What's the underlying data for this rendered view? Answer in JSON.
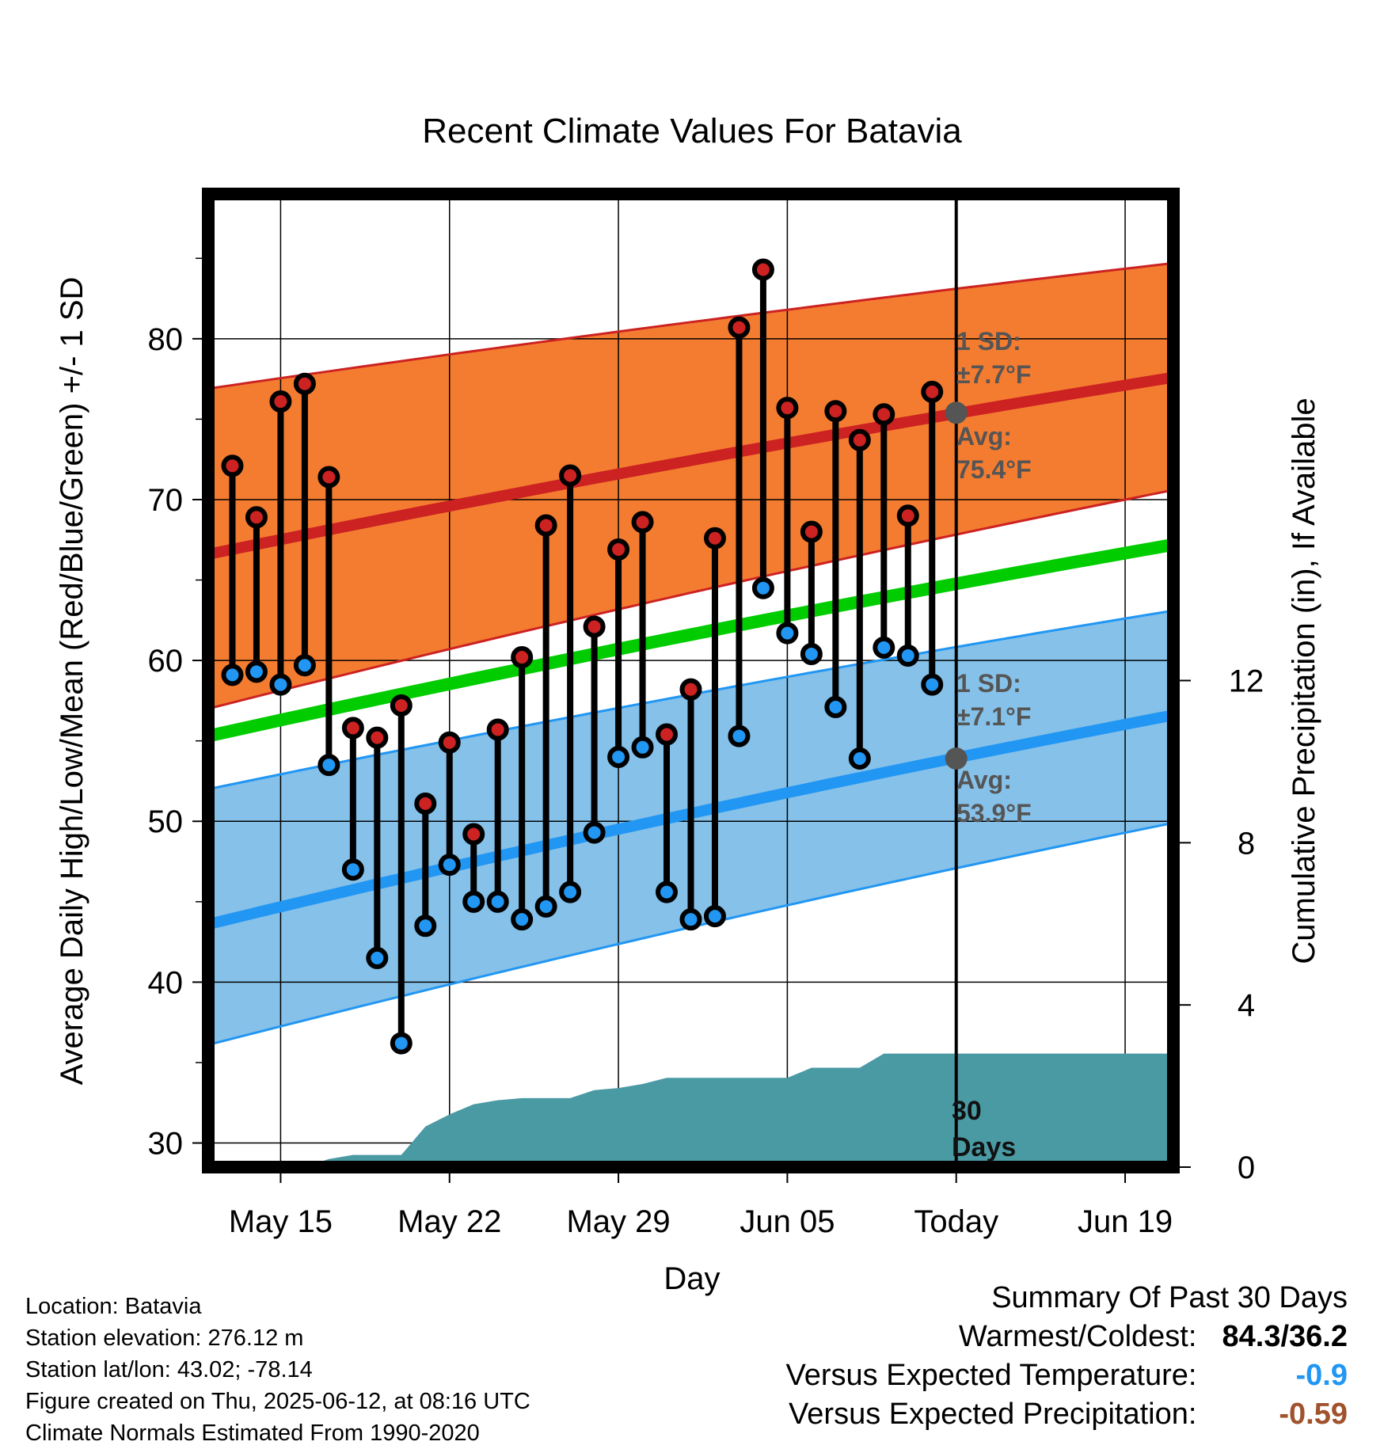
{
  "chart_data": {
    "type": "line",
    "title": "Recent Climate Values For Batavia",
    "xlabel": "Day",
    "ylabel": "Average Daily High/Low/Mean (Red/Blue/Green) +/- 1 SD",
    "y2label": "Cumulative Precipitation (in), If Available",
    "ylim": [
      28.5,
      89
    ],
    "y2lim": [
      0,
      24
    ],
    "x_ticks": [
      "May 15",
      "May 22",
      "May 29",
      "Jun 05",
      "Today",
      "Jun 19"
    ],
    "x_tick_dates": [
      "2025-05-15",
      "2025-05-22",
      "2025-05-29",
      "2025-06-05",
      "2025-06-12",
      "2025-06-19"
    ],
    "xlim": [
      "2025-05-12",
      "2025-06-21"
    ],
    "y_ticks": [
      30,
      40,
      50,
      60,
      70,
      80
    ],
    "y2_ticks": [
      0,
      4,
      8,
      12
    ],
    "grid": true,
    "dates": [
      "2025-05-13",
      "2025-05-14",
      "2025-05-15",
      "2025-05-16",
      "2025-05-17",
      "2025-05-18",
      "2025-05-19",
      "2025-05-20",
      "2025-05-21",
      "2025-05-22",
      "2025-05-23",
      "2025-05-24",
      "2025-05-25",
      "2025-05-26",
      "2025-05-27",
      "2025-05-28",
      "2025-05-29",
      "2025-05-30",
      "2025-05-31",
      "2025-06-01",
      "2025-06-02",
      "2025-06-03",
      "2025-06-04",
      "2025-06-05",
      "2025-06-06",
      "2025-06-07",
      "2025-06-08",
      "2025-06-09",
      "2025-06-10",
      "2025-06-11"
    ],
    "series": [
      {
        "name": "High",
        "color": "#cc2222",
        "values": [
          72.1,
          68.9,
          76.1,
          77.2,
          71.4,
          55.8,
          55.2,
          57.2,
          51.1,
          54.9,
          49.2,
          55.7,
          60.2,
          68.4,
          71.5,
          62.1,
          66.9,
          68.6,
          55.4,
          58.2,
          67.6,
          80.7,
          84.3,
          75.7,
          68.0,
          75.5,
          73.7,
          75.3,
          69.0,
          76.7
        ]
      },
      {
        "name": "Low",
        "color": "#2196f3",
        "values": [
          59.1,
          59.3,
          58.5,
          59.7,
          53.5,
          47.0,
          41.5,
          36.2,
          43.5,
          47.3,
          45.0,
          45.0,
          43.9,
          44.7,
          45.6,
          49.3,
          54.0,
          54.6,
          45.6,
          43.9,
          44.1,
          55.3,
          64.5,
          61.7,
          60.4,
          57.1,
          53.9,
          60.8,
          60.3,
          58.5
        ]
      }
    ],
    "normals": {
      "dates": [
        "2025-05-12",
        "2025-06-21"
      ],
      "high_mean": [
        66.6,
        77.6
      ],
      "high_upper": [
        76.9,
        84.7
      ],
      "high_lower": [
        57.0,
        70.6
      ],
      "low_mean": [
        43.6,
        56.6
      ],
      "low_upper": [
        52.0,
        63.1
      ],
      "low_lower": [
        36.1,
        49.9
      ],
      "mean": [
        55.3,
        67.2
      ],
      "colors": {
        "high_band": "#f47c30",
        "high_line": "#cc2222",
        "low_band": "#85c1e9",
        "low_line": "#2196f3",
        "mean_line": "#00cc00"
      }
    },
    "precipitation": {
      "color": "#4a9aa4",
      "dates": [
        "2025-05-13",
        "2025-05-14",
        "2025-05-15",
        "2025-05-16",
        "2025-05-17",
        "2025-05-18",
        "2025-05-19",
        "2025-05-20",
        "2025-05-21",
        "2025-05-22",
        "2025-05-23",
        "2025-05-24",
        "2025-05-25",
        "2025-05-26",
        "2025-05-27",
        "2025-05-28",
        "2025-05-29",
        "2025-05-30",
        "2025-05-31",
        "2025-06-01",
        "2025-06-02",
        "2025-06-03",
        "2025-06-04",
        "2025-06-05",
        "2025-06-06",
        "2025-06-07",
        "2025-06-08",
        "2025-06-09",
        "2025-06-21"
      ],
      "values": [
        0.0,
        0.0,
        0.0,
        0.0,
        0.2,
        0.3,
        0.3,
        0.3,
        1.0,
        1.3,
        1.55,
        1.65,
        1.7,
        1.7,
        1.7,
        1.9,
        1.95,
        2.05,
        2.2,
        2.2,
        2.2,
        2.2,
        2.2,
        2.2,
        2.45,
        2.45,
        2.45,
        2.8,
        2.8
      ]
    },
    "today_marker": {
      "date": "2025-06-12",
      "high_avg": 75.4,
      "low_avg": 53.9
    },
    "annotations": {
      "high_sd_label": "1 SD:",
      "high_sd_value": "±7.7°F",
      "high_avg_label": "Avg:",
      "high_avg_value": "75.4°F",
      "low_sd_label": "1 SD:",
      "low_sd_value": "±7.1°F",
      "low_avg_label": "Avg:",
      "low_avg_value": "53.9°F",
      "days_num": "30",
      "days_word": "Days"
    }
  },
  "footer": {
    "location": "Location: Batavia",
    "elevation": "Station elevation: 276.12 m",
    "latlon": "Station lat/lon: 43.02; -78.14",
    "created": "Figure created on Thu, 2025-06-12, at 08:16 UTC",
    "normals": "Climate Normals Estimated From 1990-2020"
  },
  "summary": {
    "title": "Summary Of Past 30 Days",
    "warmest_label": "Warmest/Coldest:",
    "warmest_value": "84.3/36.2",
    "temp_label": "Versus Expected Temperature:",
    "temp_value": "-0.9",
    "temp_color": "#2196f3",
    "precip_label": "Versus Expected Precipitation:",
    "precip_value": "-0.59",
    "precip_color": "#a0522d"
  }
}
